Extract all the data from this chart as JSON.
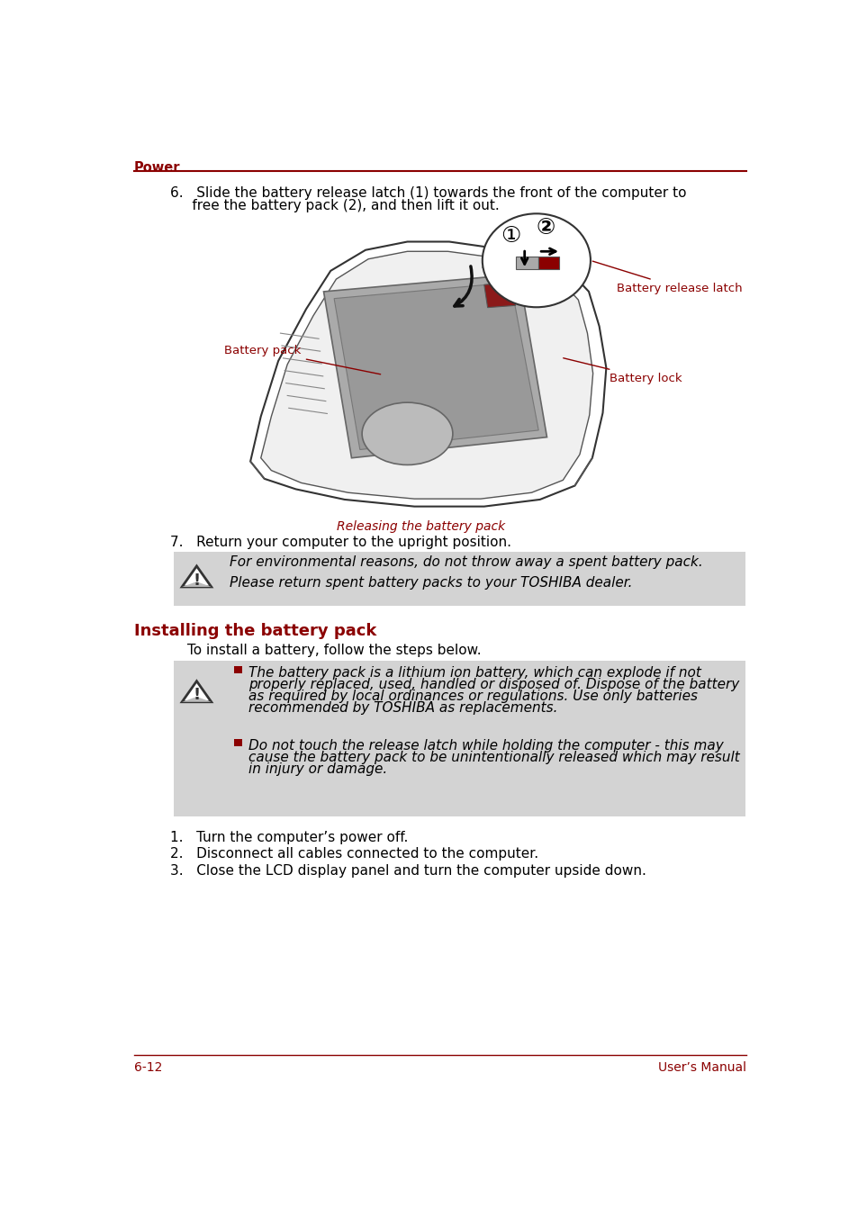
{
  "page_title": "Power",
  "footer_left": "6-12",
  "footer_right": "User’s Manual",
  "dark_red": "#8B0000",
  "bg_color": "#FFFFFF",
  "gray_bg": "#D3D3D3",
  "text_color": "#000000",
  "step6_line1": "6.   Slide the battery release latch (1) towards the front of the computer to",
  "step6_line2": "     free the battery pack (2), and then lift it out.",
  "caption_text": "Releasing the battery pack",
  "step7_text": "7.   Return your computer to the upright position.",
  "warning1_text": "For environmental reasons, do not throw away a spent battery pack.\nPlease return spent battery packs to your TOSHIBA dealer.",
  "section_title": "Installing the battery pack",
  "intro_text": "To install a battery, follow the steps below.",
  "warning2_bullet1_line1": "The battery pack is a lithium ion battery, which can explode if not",
  "warning2_bullet1_line2": "properly replaced, used, handled or disposed of. Dispose of the battery",
  "warning2_bullet1_line3": "as required by local ordinances or regulations. Use only batteries",
  "warning2_bullet1_line4": "recommended by TOSHIBA as replacements.",
  "warning2_bullet2_line1": "Do not touch the release latch while holding the computer - this may",
  "warning2_bullet2_line2": "cause the battery pack to be unintentionally released which may result",
  "warning2_bullet2_line3": "in injury or damage.",
  "step1_text": "1.   Turn the computer’s power off.",
  "step2_text": "2.   Disconnect all cables connected to the computer.",
  "step3_text": "3.   Close the LCD display panel and turn the computer upside down.",
  "label_battery_release": "Battery release latch",
  "label_battery_pack": "Battery pack",
  "label_battery_lock": "Battery lock",
  "font_size_body": 11,
  "font_size_section": 13,
  "font_size_footer": 10,
  "font_size_caption": 10,
  "font_size_label": 9.5
}
